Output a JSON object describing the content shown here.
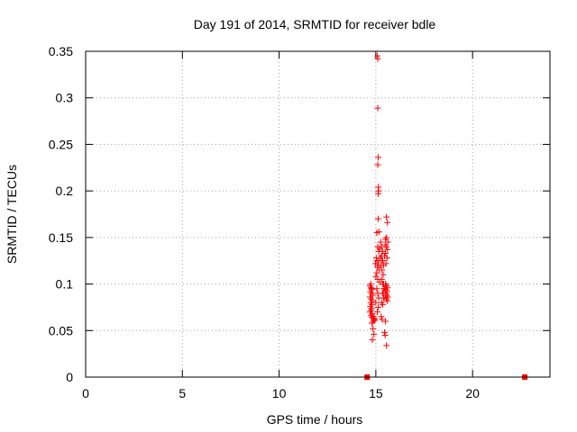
{
  "chart_data": {
    "type": "scatter",
    "title": "Day 191 of 2014, SRMTID for receiver bdle",
    "xlabel": "GPS time / hours",
    "ylabel": "SRMTID / TECUs",
    "xlim": [
      0,
      24
    ],
    "ylim": [
      0,
      0.35
    ],
    "xticks": [
      0,
      5,
      10,
      15,
      20
    ],
    "xtick_labels": [
      "0",
      "5",
      "10",
      "15",
      "20"
    ],
    "yticks": [
      0,
      0.05,
      0.1,
      0.15,
      0.2,
      0.25,
      0.3,
      0.35
    ],
    "ytick_labels": [
      "0",
      "0.05",
      "0.1",
      "0.15",
      "0.2",
      "0.25",
      "0.3",
      "0.35"
    ],
    "grid": true,
    "marker_color": "#ff0000",
    "series": [
      {
        "name": "SRMTID",
        "marker": "+",
        "x": [
          15.08,
          15.1,
          15.1,
          15.12,
          15.1,
          15.12,
          15.14,
          15.12,
          15.12,
          15.16,
          15.55,
          15.6,
          15.55,
          15.5,
          15.62,
          15.48,
          15.55,
          15.6,
          15.5,
          15.45,
          15.58,
          15.52,
          15.05,
          15.1,
          15.15,
          15.02,
          15.12,
          14.98,
          15.08,
          15.18,
          15.05,
          15.0,
          15.1,
          15.2,
          15.15,
          15.05,
          14.7,
          14.75,
          14.8,
          14.72,
          14.78,
          14.85,
          14.7,
          14.76,
          14.82,
          14.74,
          14.8,
          14.72,
          14.78,
          14.75,
          14.7,
          14.82,
          14.76,
          14.8,
          14.74,
          14.78,
          14.8,
          14.85,
          14.9,
          14.82,
          14.88,
          14.9,
          14.86,
          14.92,
          14.95,
          15.05,
          15.1,
          15.15,
          15.0,
          15.12,
          15.08,
          15.3,
          15.35,
          15.4,
          15.32,
          15.38,
          15.3,
          15.36,
          15.42,
          15.34,
          15.4,
          15.3,
          15.35,
          15.28,
          15.32,
          15.5,
          15.55,
          15.6,
          15.52,
          15.58,
          15.5,
          15.56,
          15.62,
          15.54,
          15.6,
          15.5,
          15.45,
          15.55,
          15.48,
          15.25,
          15.3,
          15.2,
          15.35,
          15.28,
          15.22,
          15.32,
          15.26,
          15.4,
          15.45,
          15.38,
          15.42,
          14.55,
          22.7
        ],
        "y": [
          0.345,
          0.342,
          0.289,
          0.236,
          0.228,
          0.204,
          0.2,
          0.197,
          0.17,
          0.156,
          0.172,
          0.166,
          0.15,
          0.148,
          0.145,
          0.142,
          0.14,
          0.137,
          0.133,
          0.13,
          0.128,
          0.122,
          0.155,
          0.14,
          0.135,
          0.128,
          0.125,
          0.122,
          0.118,
          0.115,
          0.112,
          0.108,
          0.105,
          0.102,
          0.12,
          0.125,
          0.098,
          0.096,
          0.094,
          0.092,
          0.09,
          0.088,
          0.086,
          0.084,
          0.082,
          0.08,
          0.078,
          0.076,
          0.074,
          0.072,
          0.07,
          0.068,
          0.066,
          0.064,
          0.1,
          0.095,
          0.058,
          0.052,
          0.046,
          0.04,
          0.065,
          0.062,
          0.06,
          0.063,
          0.061,
          0.095,
          0.09,
          0.085,
          0.08,
          0.075,
          0.07,
          0.13,
          0.125,
          0.12,
          0.115,
          0.11,
          0.105,
          0.1,
          0.095,
          0.09,
          0.085,
          0.08,
          0.078,
          0.065,
          0.062,
          0.1,
          0.098,
          0.096,
          0.094,
          0.092,
          0.09,
          0.088,
          0.086,
          0.084,
          0.082,
          0.06,
          0.048,
          0.034,
          0.045,
          0.145,
          0.14,
          0.138,
          0.135,
          0.13,
          0.128,
          0.125,
          0.12,
          0.1,
          0.095,
          0.09,
          0.085,
          0.0,
          0.0
        ]
      }
    ]
  }
}
